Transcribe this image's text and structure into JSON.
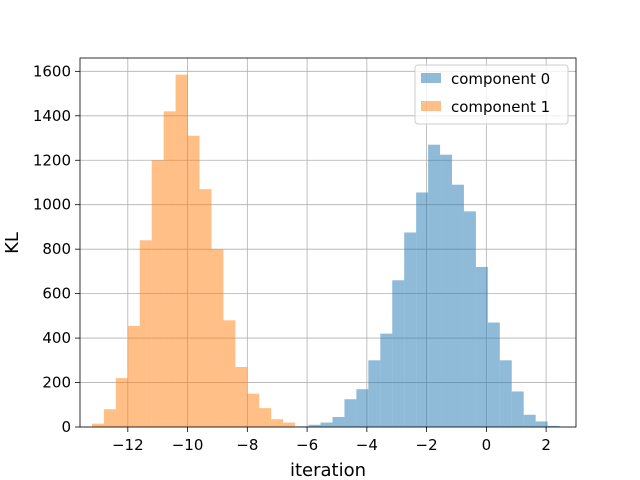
{
  "chart_data": {
    "type": "bar",
    "subtype": "overlapping-histogram",
    "title": "",
    "xlabel": "iteration",
    "ylabel": "KL",
    "xlim": [
      -13.6,
      3.0
    ],
    "ylim": [
      0,
      1660
    ],
    "xticks": [
      -12,
      -10,
      -8,
      -6,
      -4,
      -2,
      0,
      2
    ],
    "xtick_labels": [
      "−12",
      "−10",
      "−8",
      "−6",
      "−4",
      "−2",
      "0",
      "2"
    ],
    "yticks": [
      0,
      200,
      400,
      600,
      800,
      1000,
      1200,
      1400,
      1600
    ],
    "ytick_labels": [
      "0",
      "200",
      "400",
      "600",
      "800",
      "1000",
      "1200",
      "1400",
      "1600"
    ],
    "grid": true,
    "legend_position": "top-right",
    "series": [
      {
        "name": "component 0",
        "color": "#1f77b4",
        "alpha": 0.5,
        "bin_start": -6.35,
        "bin_width": 0.4,
        "values": [
          3,
          10,
          20,
          45,
          125,
          170,
          300,
          420,
          660,
          875,
          1055,
          1270,
          1225,
          1090,
          970,
          720,
          470,
          300,
          160,
          55,
          25,
          5
        ]
      },
      {
        "name": "component 1",
        "color": "#ff7f0e",
        "alpha": 0.5,
        "bin_start": -13.2,
        "bin_width": 0.4,
        "values": [
          15,
          80,
          220,
          455,
          840,
          1200,
          1420,
          1585,
          1310,
          1070,
          800,
          480,
          270,
          150,
          85,
          35,
          20
        ]
      }
    ]
  }
}
